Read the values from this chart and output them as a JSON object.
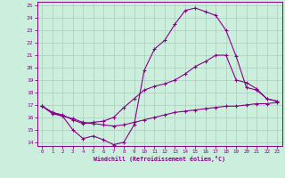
{
  "xlabel": "Windchill (Refroidissement éolien,°C)",
  "bg_color": "#cceedd",
  "line_color": "#880088",
  "grid_color": "#aaccbb",
  "xlim": [
    -0.5,
    23.5
  ],
  "ylim": [
    13.7,
    25.3
  ],
  "xticks": [
    0,
    1,
    2,
    3,
    4,
    5,
    6,
    7,
    8,
    9,
    10,
    11,
    12,
    13,
    14,
    15,
    16,
    17,
    18,
    19,
    20,
    21,
    22,
    23
  ],
  "yticks": [
    14,
    15,
    16,
    17,
    18,
    19,
    20,
    21,
    22,
    23,
    24,
    25
  ],
  "line1_x": [
    0,
    1,
    2,
    3,
    4,
    5,
    6,
    7,
    8,
    9,
    10,
    11,
    12,
    13,
    14,
    15,
    16,
    17,
    18,
    19,
    20,
    21,
    22,
    23
  ],
  "line1_y": [
    16.9,
    16.4,
    16.1,
    15.0,
    14.3,
    14.5,
    14.2,
    13.8,
    14.0,
    15.4,
    19.8,
    21.5,
    22.2,
    23.5,
    24.6,
    24.8,
    24.5,
    24.2,
    23.0,
    20.9,
    18.4,
    18.2,
    17.5,
    17.3
  ],
  "line2_x": [
    0,
    1,
    2,
    3,
    4,
    5,
    6,
    7,
    8,
    9,
    10,
    11,
    12,
    13,
    14,
    15,
    16,
    17,
    18,
    19,
    20,
    21,
    22,
    23
  ],
  "line2_y": [
    16.9,
    16.4,
    16.2,
    15.8,
    15.5,
    15.6,
    15.7,
    16.0,
    16.8,
    17.5,
    18.2,
    18.5,
    18.7,
    19.0,
    19.5,
    20.1,
    20.5,
    21.0,
    21.0,
    19.0,
    18.8,
    18.3,
    17.5,
    17.3
  ],
  "line3_x": [
    0,
    1,
    2,
    3,
    4,
    5,
    6,
    7,
    8,
    9,
    10,
    11,
    12,
    13,
    14,
    15,
    16,
    17,
    18,
    19,
    20,
    21,
    22,
    23
  ],
  "line3_y": [
    16.9,
    16.3,
    16.1,
    15.9,
    15.6,
    15.5,
    15.4,
    15.3,
    15.4,
    15.6,
    15.8,
    16.0,
    16.2,
    16.4,
    16.5,
    16.6,
    16.7,
    16.8,
    16.9,
    16.9,
    17.0,
    17.1,
    17.1,
    17.2
  ]
}
